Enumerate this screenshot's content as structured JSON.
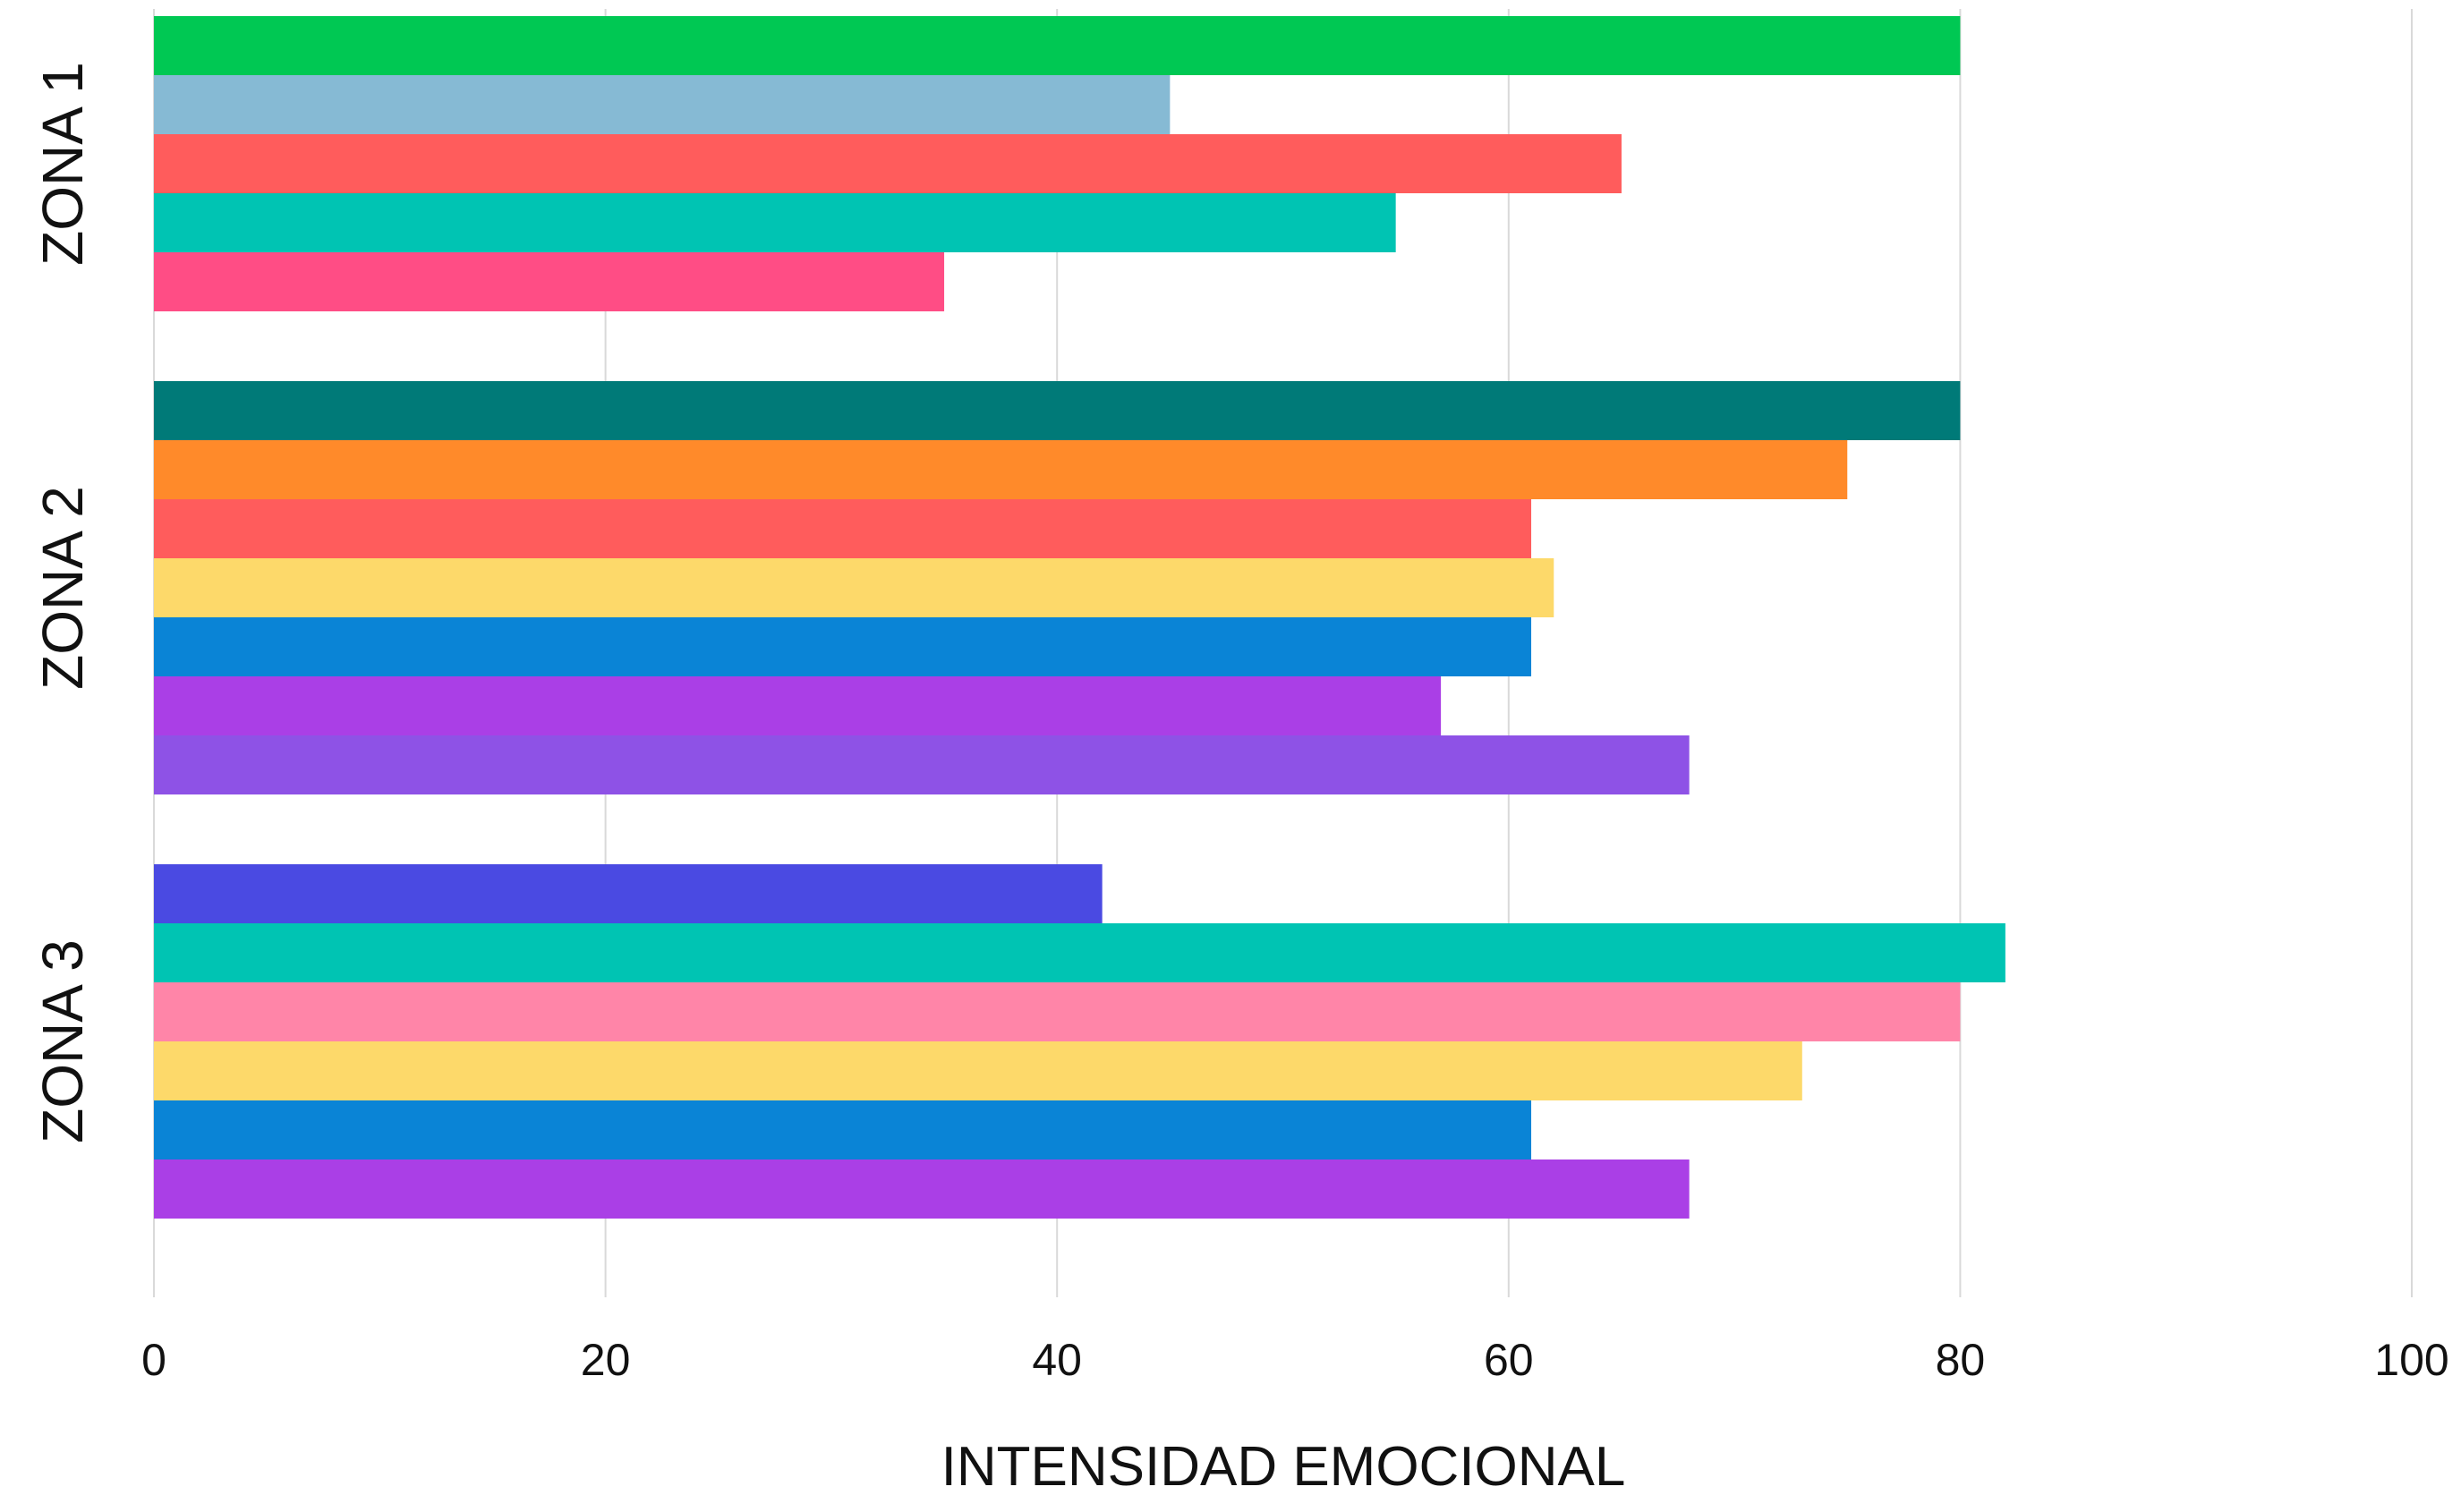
{
  "chart_data": {
    "type": "bar",
    "orientation": "horizontal",
    "title": "",
    "xlabel": "INTENSIDAD EMOCIONAL",
    "ylabel": "",
    "xlim": [
      0,
      100
    ],
    "xticks": [
      "0",
      "20",
      "40",
      "60",
      "80",
      "100"
    ],
    "grid": true,
    "legend": "none",
    "groups": [
      {
        "label": "ZONA 1",
        "bars": [
          {
            "value": 80,
            "color": "#00C853"
          },
          {
            "value": 45,
            "color": "#86BAD4"
          },
          {
            "value": 65,
            "color": "#FF5C5C"
          },
          {
            "value": 55,
            "color": "#00C4B3"
          },
          {
            "value": 35,
            "color": "#FF4D85"
          }
        ]
      },
      {
        "label": "ZONA 2",
        "bars": [
          {
            "value": 80,
            "color": "#007A78"
          },
          {
            "value": 75,
            "color": "#FF8A2A"
          },
          {
            "value": 61,
            "color": "#FF5C5C"
          },
          {
            "value": 62,
            "color": "#FDD96A"
          },
          {
            "value": 61,
            "color": "#0A84D6"
          },
          {
            "value": 57,
            "color": "#AA3FE6"
          },
          {
            "value": 68,
            "color": "#8E52E6"
          }
        ]
      },
      {
        "label": "ZONA 3",
        "bars": [
          {
            "value": 42,
            "color": "#4A4AE2"
          },
          {
            "value": 82,
            "color": "#00C4B3"
          },
          {
            "value": 80,
            "color": "#FF85A8"
          },
          {
            "value": 73,
            "color": "#FDD96A"
          },
          {
            "value": 61,
            "color": "#0A84D6"
          },
          {
            "value": 68,
            "color": "#AA3FE6"
          }
        ]
      }
    ]
  },
  "colors": {
    "grid": "#D9D9D9",
    "text": "#111111",
    "background": "#FFFFFF"
  }
}
